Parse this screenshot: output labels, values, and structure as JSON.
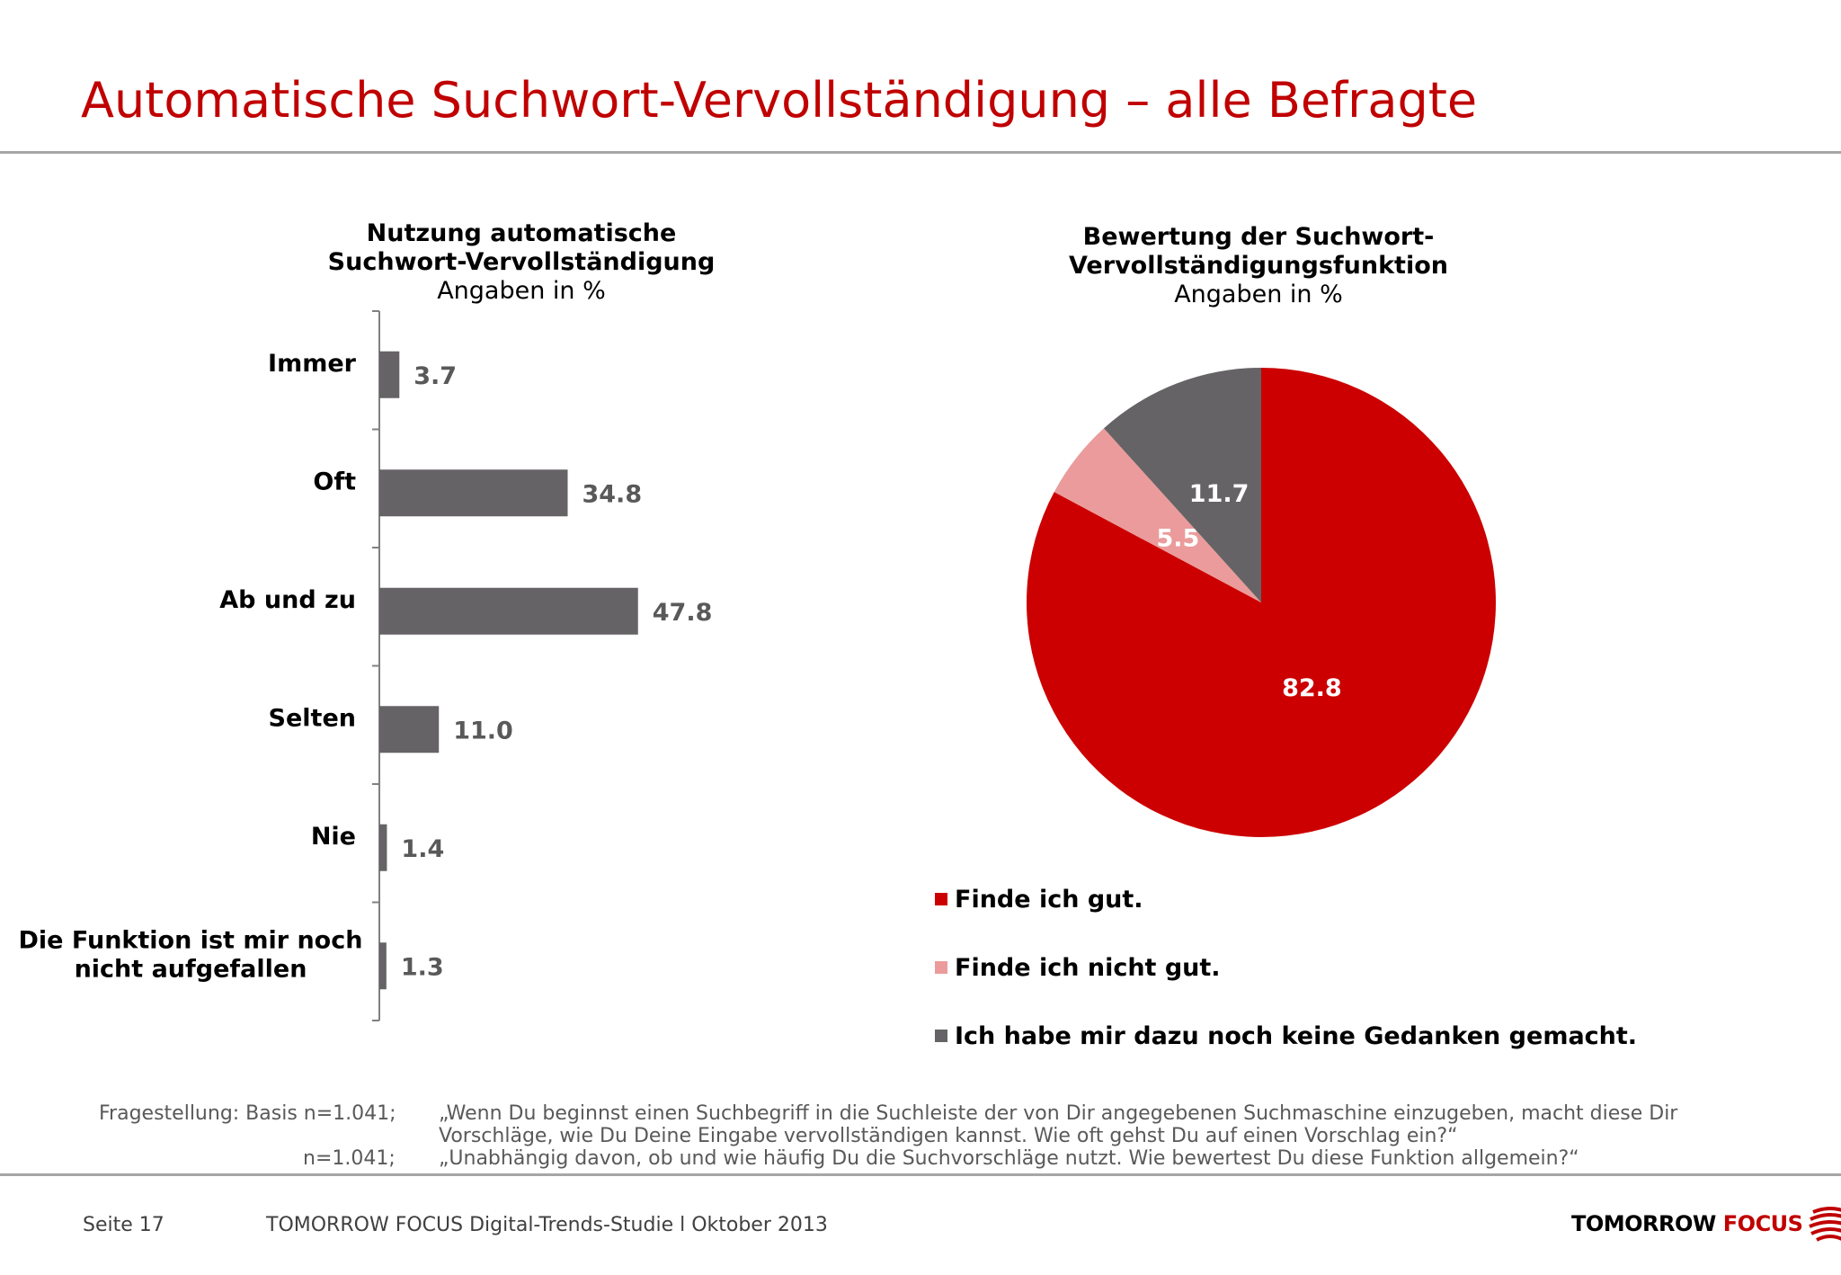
{
  "title": "Automatische Suchwort-Vervollständigung – alle Befragte",
  "colors": {
    "accent": "#c00000",
    "bar": "#666366",
    "pie_good": "#cc0000",
    "pie_bad": "#eb9b9b",
    "pie_none": "#666366",
    "rule": "#a6a6a6"
  },
  "chart_data": [
    {
      "type": "bar",
      "orientation": "horizontal",
      "title_bold": "Nutzung automatische Suchwort-Vervollständigung",
      "title_lines": [
        "Nutzung automatische",
        "Suchwort-Vervollständigung"
      ],
      "subtitle": "Angaben in %",
      "categories": [
        "Immer",
        "Oft",
        "Ab und zu",
        "Selten",
        "Nie",
        "Die Funktion ist mir noch nicht aufgefallen"
      ],
      "category_lines": [
        [
          "Immer"
        ],
        [
          "Oft"
        ],
        [
          "Ab und zu"
        ],
        [
          "Selten"
        ],
        [
          "Nie"
        ],
        [
          "Die Funktion ist mir noch",
          "nicht aufgefallen"
        ]
      ],
      "values": [
        3.7,
        34.8,
        47.8,
        11.0,
        1.4,
        1.3
      ],
      "labels": [
        "3.7",
        "34.8",
        "47.8",
        "11.0",
        "1.4",
        "1.3"
      ],
      "xlim": [
        0,
        100
      ],
      "grid": false
    },
    {
      "type": "pie",
      "title_bold": "Bewertung der Suchwort-Vervollständigungsfunktion",
      "title_lines": [
        "Bewertung der Suchwort-",
        "Vervollständigungsfunktion"
      ],
      "subtitle": "Angaben in %",
      "slices": [
        {
          "name": "Finde ich gut.",
          "value": 82.8,
          "label": "82.8",
          "color": "#cc0000"
        },
        {
          "name": "Finde ich nicht gut.",
          "value": 5.5,
          "label": "5.5",
          "color": "#eb9b9b"
        },
        {
          "name": "Ich habe mir dazu noch keine Gedanken gemacht.",
          "value": 11.7,
          "label": "11.7",
          "color": "#666366"
        }
      ],
      "legend_position": "bottom"
    }
  ],
  "notes": {
    "label_1": "Fragestellung: Basis n=1.041;",
    "text_1a": "„Wenn Du beginnst einen Suchbegriff in die Suchleiste der von Dir angegebenen Suchmaschine einzugeben, macht diese Dir",
    "text_1b": "Vorschläge, wie Du Deine Eingabe vervollständigen kannst. Wie oft gehst Du auf einen Vorschlag ein?“",
    "label_2": "n=1.041;",
    "text_2": "„Unabhängig davon, ob und wie häufig Du die Suchvorschläge nutzt. Wie bewertest Du diese Funktion allgemein?“"
  },
  "footer": {
    "page": "Seite 17",
    "study": "TOMORROW FOCUS Digital-Trends-Studie l Oktober 2013",
    "logo_part1": "TOMORROW",
    "logo_part2": "FOCUS",
    "logo_icon": "striped-sphere-logo"
  }
}
